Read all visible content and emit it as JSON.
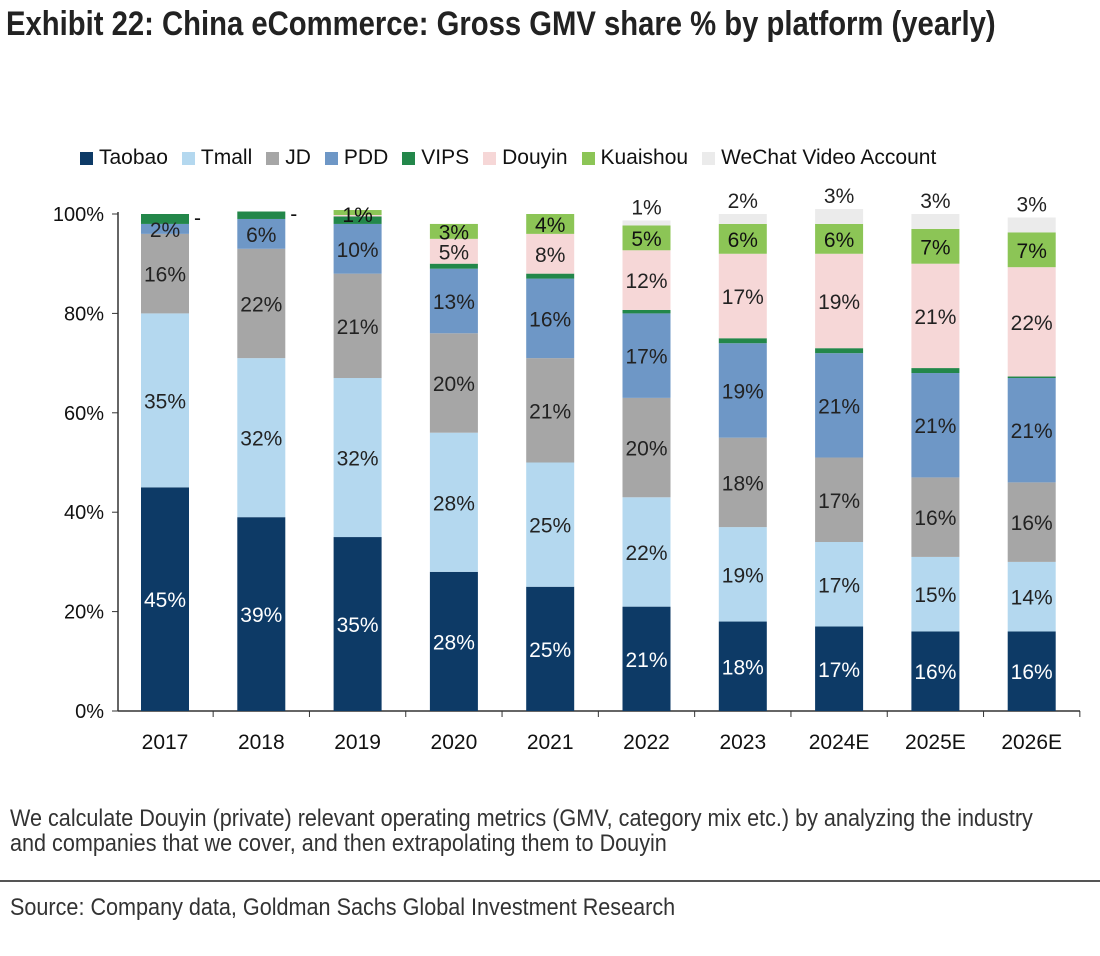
{
  "chart_data": {
    "type": "bar",
    "stacked": true,
    "title": "Exhibit 22: China eCommerce: Gross GMV share % by platform (yearly)",
    "xlabel": "",
    "ylabel": "",
    "ylim": [
      0,
      100
    ],
    "yticks": [
      "0%",
      "20%",
      "40%",
      "60%",
      "80%",
      "100%"
    ],
    "categories": [
      "2017",
      "2018",
      "2019",
      "2020",
      "2021",
      "2022",
      "2023",
      "2024E",
      "2025E",
      "2026E"
    ],
    "legend_position": "top",
    "series": [
      {
        "name": "Taobao",
        "color": "#0d3a66",
        "label_color": "#ffffff",
        "values": [
          45,
          39,
          35,
          28,
          25,
          21,
          18,
          17,
          16,
          16
        ],
        "labels": [
          "45%",
          "39%",
          "35%",
          "28%",
          "25%",
          "21%",
          "18%",
          "17%",
          "16%",
          "16%"
        ]
      },
      {
        "name": "Tmall",
        "color": "#b4d8ef",
        "label_color": "#222222",
        "values": [
          35,
          32,
          32,
          28,
          25,
          22,
          19,
          17,
          15,
          14
        ],
        "labels": [
          "35%",
          "32%",
          "32%",
          "28%",
          "25%",
          "22%",
          "19%",
          "17%",
          "15%",
          "14%"
        ]
      },
      {
        "name": "JD",
        "color": "#a6a6a6",
        "label_color": "#222222",
        "values": [
          16,
          22,
          21,
          20,
          21,
          20,
          18,
          17,
          16,
          16
        ],
        "labels": [
          "16%",
          "22%",
          "21%",
          "20%",
          "21%",
          "20%",
          "18%",
          "17%",
          "16%",
          "16%"
        ]
      },
      {
        "name": "PDD",
        "color": "#6e97c6",
        "label_color": "#222222",
        "values": [
          2,
          6,
          10,
          13,
          16,
          17,
          19,
          21,
          21,
          21
        ],
        "labels": [
          "2%",
          "6%",
          "10%",
          "13%",
          "16%",
          "17%",
          "19%",
          "21%",
          "21%",
          "21%"
        ]
      },
      {
        "name": "VIPS",
        "color": "#23874a",
        "label_color": "#111111",
        "values": [
          2,
          1.5,
          1.5,
          1,
          1,
          0.7,
          1,
          1,
          1,
          0.3
        ],
        "labels": [
          "-",
          "-",
          "",
          "",
          "",
          "",
          "",
          "",
          "",
          ""
        ]
      },
      {
        "name": "Douyin",
        "color": "#f6d7d7",
        "label_color": "#222222",
        "values": [
          0,
          0,
          0.3,
          5,
          8,
          12,
          17,
          19,
          21,
          22
        ],
        "labels": [
          "",
          "",
          "",
          "5%",
          "8%",
          "12%",
          "17%",
          "19%",
          "21%",
          "22%"
        ]
      },
      {
        "name": "Kuaishou",
        "color": "#8cc556",
        "label_color": "#111111",
        "values": [
          0,
          0,
          1,
          3,
          4,
          5,
          6,
          6,
          7,
          7
        ],
        "labels": [
          "",
          "",
          "1%",
          "3%",
          "4%",
          "5%",
          "6%",
          "6%",
          "7%",
          "7%"
        ]
      },
      {
        "name": "WeChat Video Account",
        "color": "#ebebeb",
        "label_color": "#222222",
        "values": [
          0,
          0,
          0,
          0,
          0,
          1,
          2,
          3,
          3,
          3
        ],
        "labels": [
          "",
          "",
          "",
          "",
          "",
          "1%",
          "2%",
          "3%",
          "3%",
          "3%"
        ]
      }
    ]
  },
  "note": "We calculate Douyin (private) relevant operating metrics (GMV, category mix etc.) by analyzing the industry and companies that we cover, and then extrapolating them to Douyin",
  "source": "Source: Company data, Goldman Sachs Global Investment Research"
}
